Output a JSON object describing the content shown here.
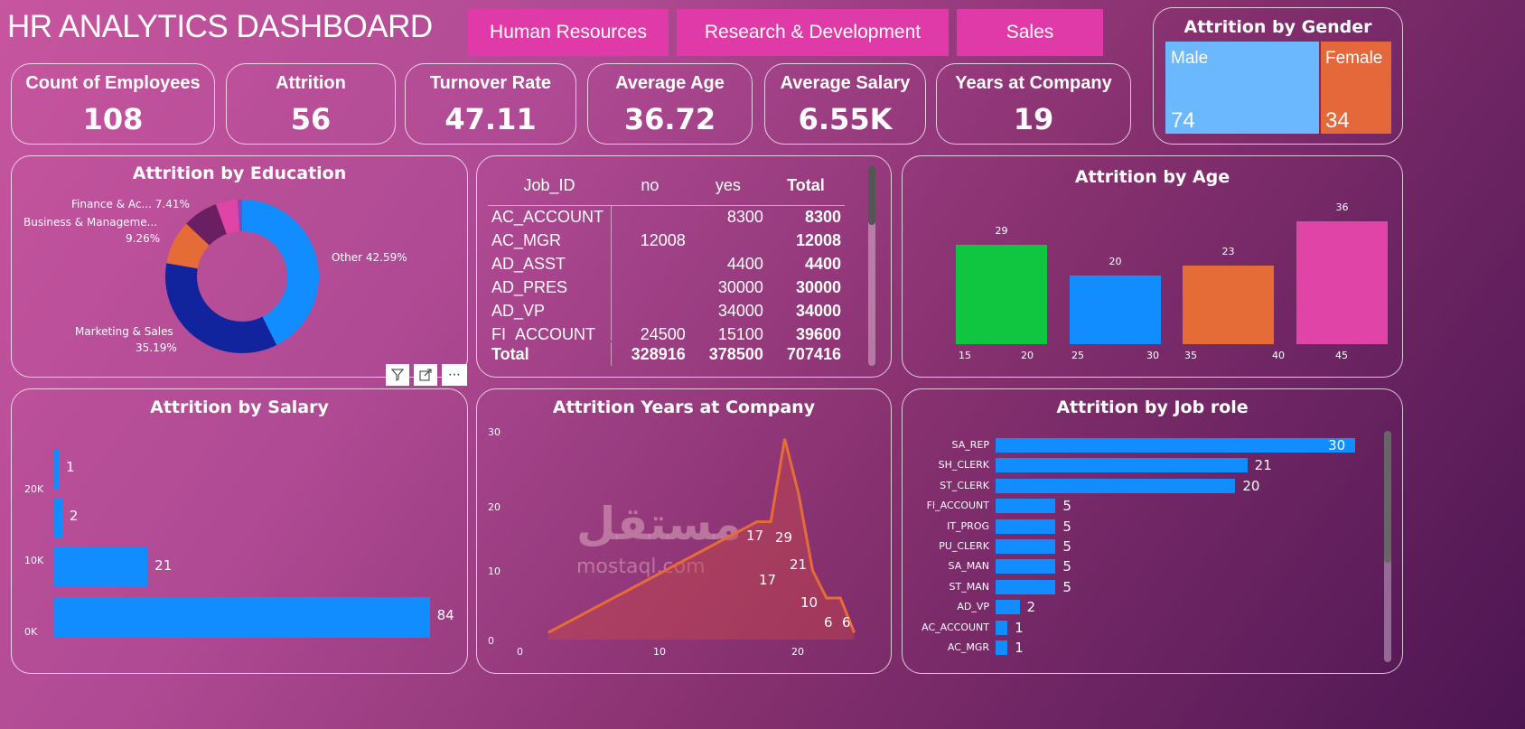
{
  "header": {
    "title": "HR ANALYTICS DASHBOARD",
    "slicers": [
      "Human Resources",
      "Research & Development",
      "Sales"
    ],
    "slicer_color": "#e03aa8"
  },
  "kpis": [
    {
      "label": "Count of Employees",
      "value": "108"
    },
    {
      "label": "Attrition",
      "value": "56"
    },
    {
      "label": "Turnover Rate",
      "value": "47.11"
    },
    {
      "label": "Average Age",
      "value": "36.72"
    },
    {
      "label": "Average Salary",
      "value": "6.55K"
    },
    {
      "label": "Years at Company",
      "value": "19"
    }
  ],
  "gender": {
    "title": "Attrition by Gender",
    "items": [
      {
        "label": "Male",
        "value": "74",
        "color": "#6bb8ff"
      },
      {
        "label": "Female",
        "value": "34",
        "color": "#e4683a"
      }
    ]
  },
  "visual_toolbar": {
    "icons": [
      "filter-icon",
      "focus-mode-icon",
      "more-options-icon"
    ],
    "more": "⋯"
  },
  "table": {
    "headers": [
      "Job_ID",
      "no",
      "yes",
      "Total"
    ],
    "rows": [
      [
        "AC_ACCOUNT",
        "",
        "8300",
        "8300"
      ],
      [
        "AC_MGR",
        "12008",
        "",
        "12008"
      ],
      [
        "AD_ASST",
        "",
        "4400",
        "4400"
      ],
      [
        "AD_PRES",
        "",
        "30000",
        "30000"
      ],
      [
        "AD_VP",
        "",
        "34000",
        "34000"
      ],
      [
        "FI_ACCOUNT",
        "24500",
        "15100",
        "39600"
      ]
    ],
    "total": [
      "Total",
      "328916",
      "378500",
      "707416"
    ]
  },
  "watermark": {
    "arabic": "مستقل",
    "latin": "mostaql.com"
  },
  "chart_data": [
    {
      "type": "pie",
      "title": "Attrition by Education",
      "donut": true,
      "slices": [
        {
          "label": "Other 42.59%",
          "value": 42.59,
          "color": "#118dff"
        },
        {
          "label": "Marketing & Sales",
          "pct": "35.19%",
          "value": 35.19,
          "color": "#12239e"
        },
        {
          "label": "Business & Manageme...",
          "pct": "9.26%",
          "value": 9.26,
          "color": "#e66c37"
        },
        {
          "label": "Finance & Ac... 7.41%",
          "value": 7.41,
          "color": "#6b1f63"
        },
        {
          "value": 4.63,
          "color": "#e044a7"
        },
        {
          "value": 0.92,
          "color": "#744ec2"
        }
      ]
    },
    {
      "type": "bar",
      "title": "Attrition by Age",
      "x_ticks": [
        "15",
        "20",
        "25",
        "30",
        "35",
        "40",
        "45"
      ],
      "bins": [
        [
          15,
          20
        ],
        [
          25,
          30
        ],
        [
          35,
          40
        ],
        [
          45,
          45
        ]
      ],
      "values": [
        29,
        20,
        23,
        36
      ],
      "colors": [
        "#10c640",
        "#118dff",
        "#e66c37",
        "#e044a7"
      ]
    },
    {
      "type": "bar",
      "orientation": "horizontal",
      "title": "Attrition by Salary",
      "y_ticks": [
        "20K",
        "10K",
        "0K"
      ],
      "values": [
        1,
        2,
        21,
        84
      ],
      "color": "#118dff"
    },
    {
      "type": "area",
      "title": "Attrition Years at Company",
      "x_ticks": [
        "0",
        "10",
        "20"
      ],
      "y_ticks": [
        "30",
        "20",
        "10",
        "0"
      ],
      "ylim": [
        0,
        30
      ],
      "x": [
        2,
        17,
        18,
        19,
        20,
        21,
        22,
        23,
        24
      ],
      "y": [
        1,
        17,
        17,
        29,
        21,
        10,
        6,
        6,
        1
      ],
      "labels": [
        "17",
        "29",
        "17",
        "21",
        "10",
        "6",
        "6"
      ],
      "color": "#e66c37"
    },
    {
      "type": "bar",
      "orientation": "horizontal",
      "title": "Attrition by Job role",
      "categories": [
        "SA_REP",
        "SH_CLERK",
        "ST_CLERK",
        "FI_ACCOUNT",
        "IT_PROG",
        "PU_CLERK",
        "SA_MAN",
        "ST_MAN",
        "AD_VP",
        "AC_ACCOUNT",
        "AC_MGR"
      ],
      "values": [
        30,
        21,
        20,
        5,
        5,
        5,
        5,
        5,
        2,
        1,
        1
      ],
      "color": "#118dff"
    }
  ]
}
